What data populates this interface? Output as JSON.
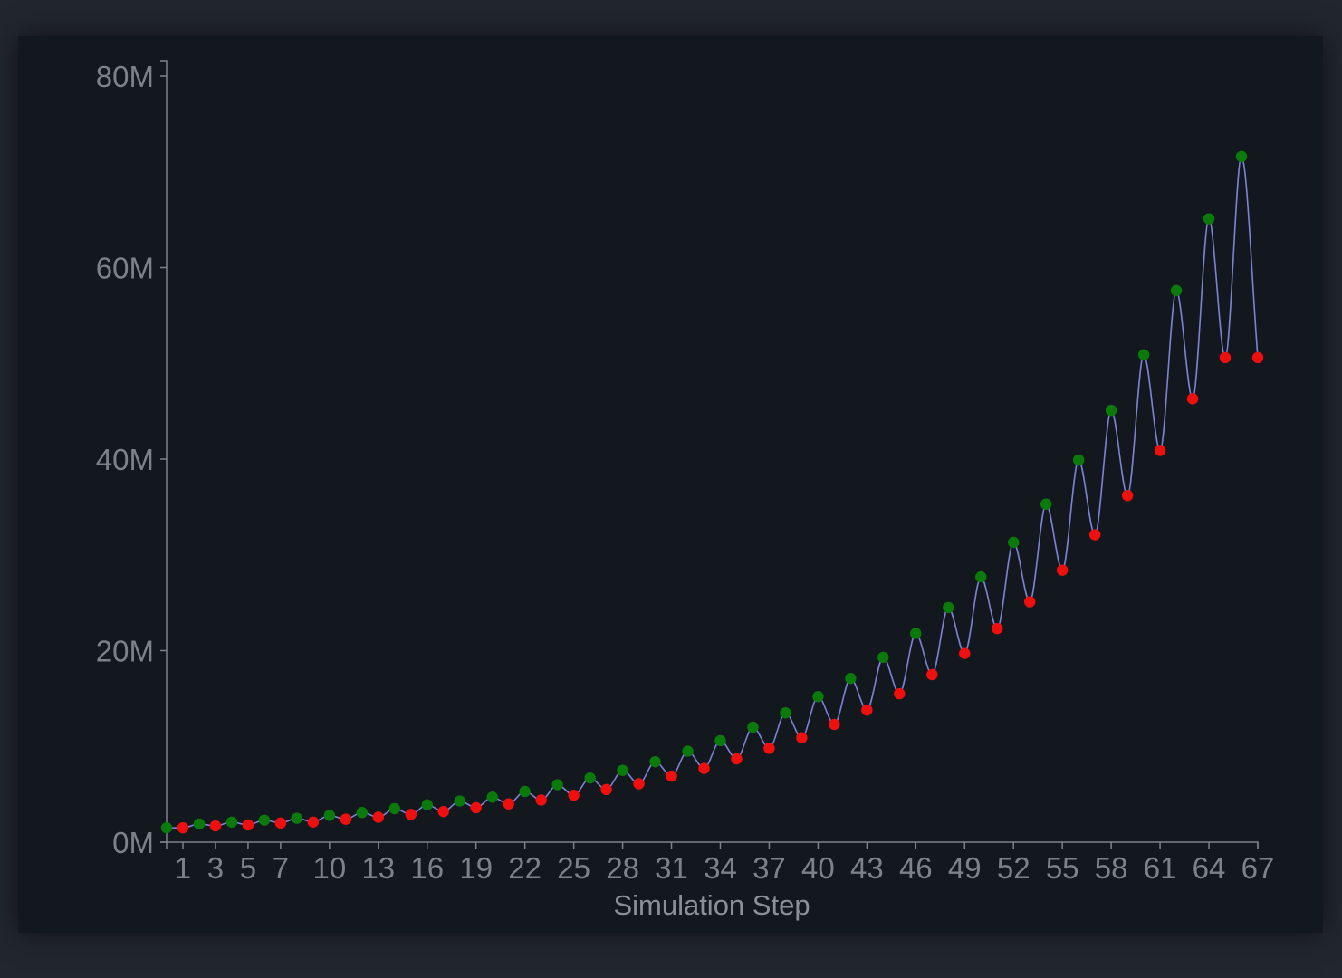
{
  "chart_data": {
    "type": "line",
    "title": "",
    "xlabel": "Simulation Step",
    "ylabel": "",
    "xlim": [
      0,
      67
    ],
    "ylim": [
      0,
      80000000
    ],
    "yticks": [
      {
        "value": 0,
        "label": "0M"
      },
      {
        "value": 20000000,
        "label": "20M"
      },
      {
        "value": 40000000,
        "label": "40M"
      },
      {
        "value": 60000000,
        "label": "60M"
      },
      {
        "value": 80000000,
        "label": "80M"
      }
    ],
    "xticks": [
      1,
      3,
      5,
      7,
      10,
      13,
      16,
      19,
      22,
      25,
      28,
      31,
      34,
      37,
      40,
      43,
      46,
      49,
      52,
      55,
      58,
      61,
      64,
      67
    ],
    "grid": false,
    "colors": {
      "line": "#7d82d6",
      "peak_marker": "#0a7a0a",
      "trough_marker": "#f00f0f"
    },
    "series": [
      {
        "x": [
          0,
          1,
          2,
          3,
          4,
          5,
          6,
          7,
          8,
          9,
          10,
          11,
          12,
          13,
          14,
          15,
          16,
          17,
          18,
          19,
          20,
          21,
          22,
          23,
          24,
          25,
          26,
          27,
          28,
          29,
          30,
          31,
          32,
          33,
          34,
          35,
          36,
          37,
          38,
          39,
          40,
          41,
          42,
          43,
          44,
          45,
          46,
          47,
          48,
          49,
          50,
          51,
          52,
          53,
          54,
          55,
          56,
          57,
          58,
          59,
          60,
          61,
          62,
          63,
          64,
          65,
          66,
          67
        ],
        "values": [
          1500000,
          1500000,
          1900000,
          1700000,
          2100000,
          1800000,
          2300000,
          2000000,
          2500000,
          2100000,
          2800000,
          2400000,
          3100000,
          2600000,
          3500000,
          2900000,
          3900000,
          3200000,
          4300000,
          3600000,
          4700000,
          4000000,
          5300000,
          4400000,
          6000000,
          4900000,
          6700000,
          5500000,
          7500000,
          6100000,
          8400000,
          6900000,
          9500000,
          7700000,
          10600000,
          8700000,
          12000000,
          9800000,
          13500000,
          10900000,
          15200000,
          12300000,
          17100000,
          13800000,
          19300000,
          15500000,
          21800000,
          17500000,
          24500000,
          19700000,
          27700000,
          22300000,
          31300000,
          25100000,
          35300000,
          28400000,
          39900000,
          32100000,
          45100000,
          36200000,
          50900000,
          40900000,
          57600000,
          46300000,
          65100000,
          50600000,
          71600000,
          50600000
        ],
        "marker_types": [
          "peak",
          "trough",
          "peak",
          "trough",
          "peak",
          "trough",
          "peak",
          "trough",
          "peak",
          "trough",
          "peak",
          "trough",
          "peak",
          "trough",
          "peak",
          "trough",
          "peak",
          "trough",
          "peak",
          "trough",
          "peak",
          "trough",
          "peak",
          "trough",
          "peak",
          "trough",
          "peak",
          "trough",
          "peak",
          "trough",
          "peak",
          "trough",
          "peak",
          "trough",
          "peak",
          "trough",
          "peak",
          "trough",
          "peak",
          "trough",
          "peak",
          "trough",
          "peak",
          "trough",
          "peak",
          "trough",
          "peak",
          "trough",
          "peak",
          "trough",
          "peak",
          "trough",
          "peak",
          "trough",
          "peak",
          "trough",
          "peak",
          "trough",
          "peak",
          "trough",
          "peak",
          "trough",
          "peak",
          "trough",
          "peak",
          "trough",
          "peak",
          "trough"
        ]
      }
    ]
  }
}
